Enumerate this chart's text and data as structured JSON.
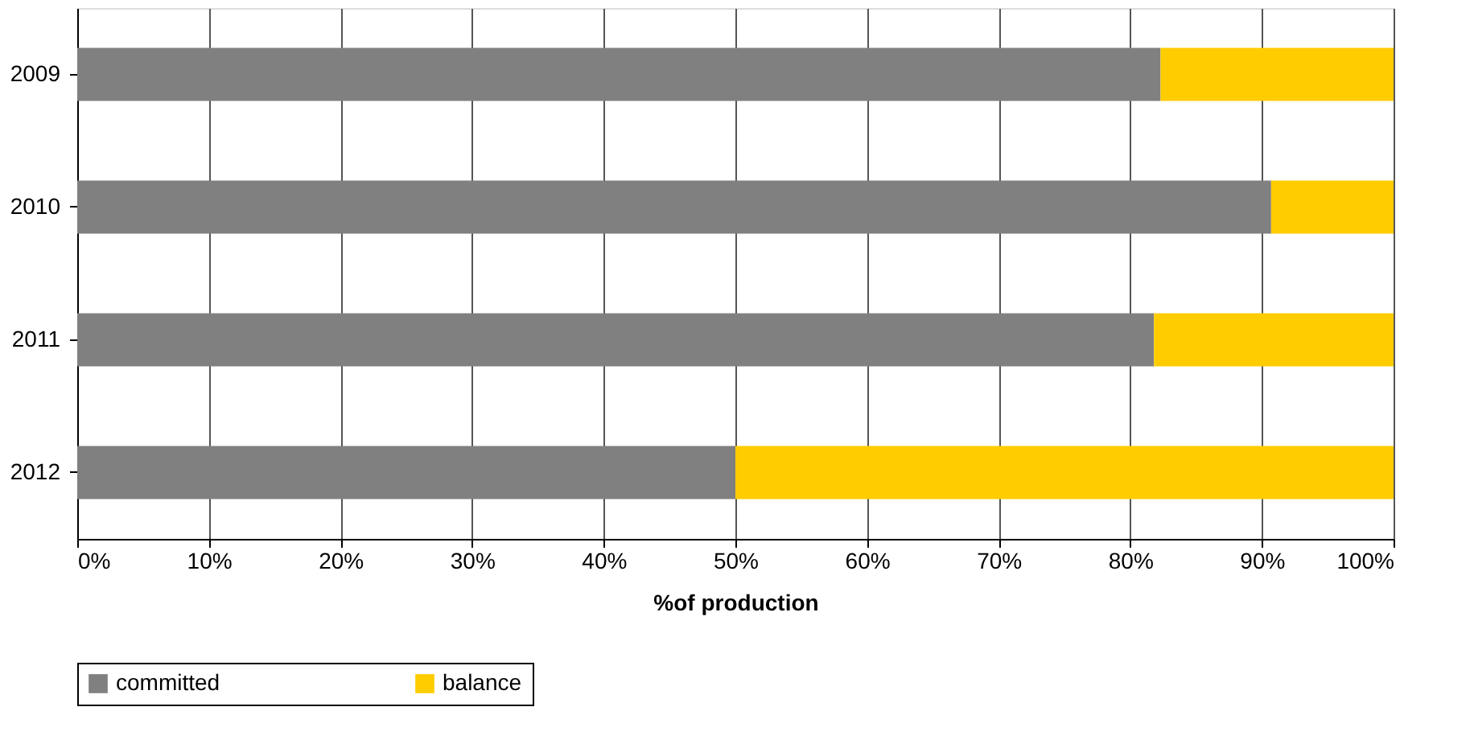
{
  "chart_data": {
    "type": "bar",
    "orientation": "horizontal",
    "stacked": true,
    "xlabel": "%of production",
    "categories": [
      "2009",
      "2010",
      "2011",
      "2012"
    ],
    "series": [
      {
        "name": "committed",
        "color": "#808080",
        "values": [
          82.3,
          90.7,
          81.8,
          50
        ]
      },
      {
        "name": "balance",
        "color": "#ffcc00",
        "values": [
          17.7,
          9.3,
          18.2,
          50
        ]
      }
    ],
    "xlim": [
      0,
      100
    ],
    "xticks": [
      {
        "value": 0,
        "label": "0%"
      },
      {
        "value": 10,
        "label": "10%"
      },
      {
        "value": 20,
        "label": "20%"
      },
      {
        "value": 30,
        "label": "30%"
      },
      {
        "value": 40,
        "label": "40%"
      },
      {
        "value": 50,
        "label": "50%"
      },
      {
        "value": 60,
        "label": "60%"
      },
      {
        "value": 70,
        "label": "70%"
      },
      {
        "value": 80,
        "label": "80%"
      },
      {
        "value": 90,
        "label": "90%"
      },
      {
        "value": 100,
        "label": "100%"
      }
    ],
    "grid": "x",
    "legend": "bottom"
  }
}
